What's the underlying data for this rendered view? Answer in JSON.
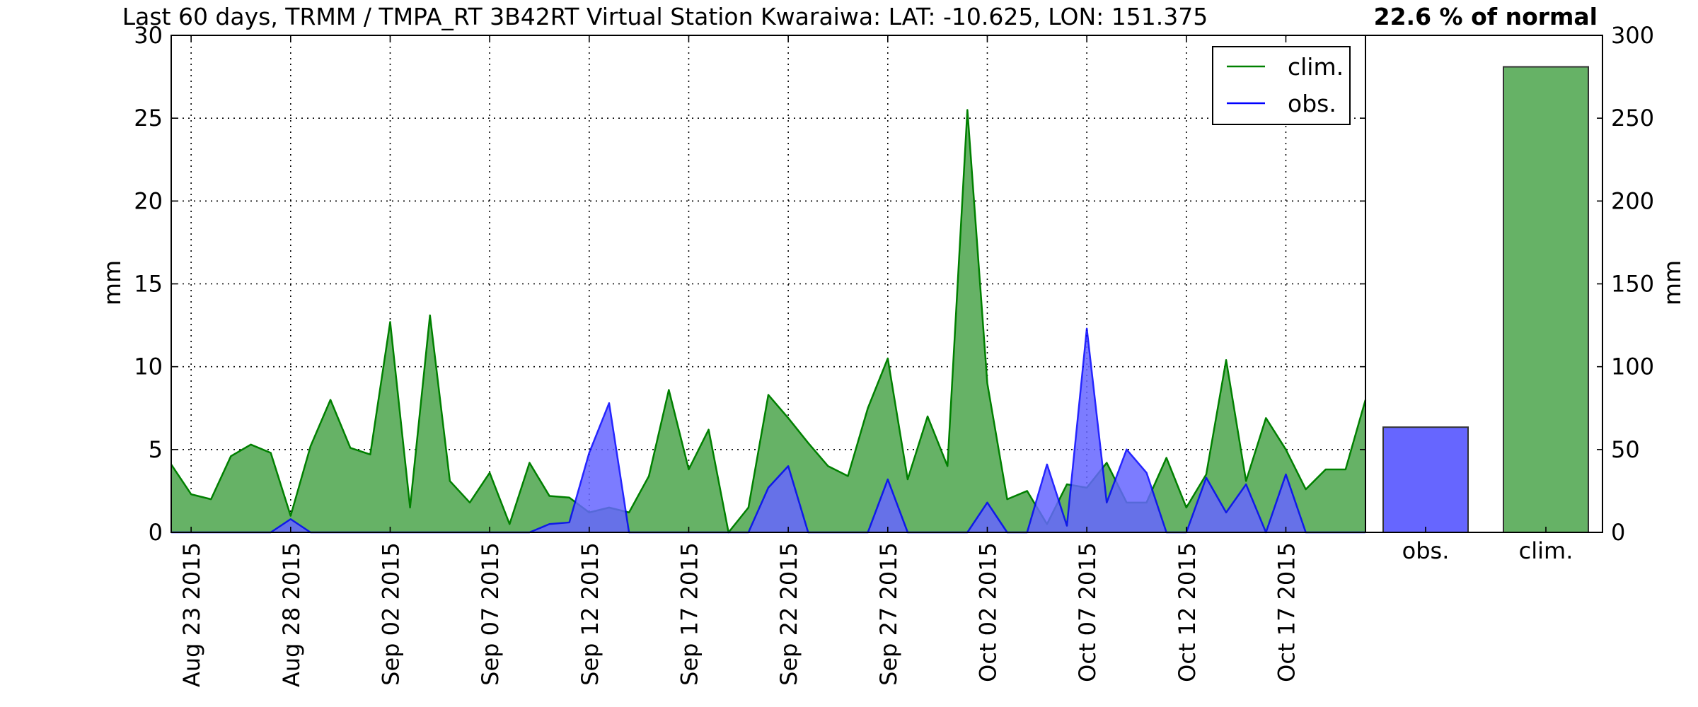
{
  "chart_data": [
    {
      "type": "area",
      "title": "Last 60 days, TRMM / TMPA_RT 3B42RT Virtual Station Kwaraiwa: LAT: -10.625, LON: 151.375",
      "ylabel": "mm",
      "xlabel": "",
      "x_start": "2015-08-22",
      "x_end": "2015-10-21",
      "xlim": [
        "2015-08-22",
        "2015-10-21"
      ],
      "ylim": [
        0,
        30
      ],
      "yticks": [
        "0",
        "5",
        "10",
        "15",
        "20",
        "25",
        "30"
      ],
      "xtick_labels": [
        "Aug 23 2015",
        "Aug 28 2015",
        "Sep 02 2015",
        "Sep 07 2015",
        "Sep 12 2015",
        "Sep 17 2015",
        "Sep 22 2015",
        "Sep 27 2015",
        "Oct 02 2015",
        "Oct 07 2015",
        "Oct 12 2015",
        "Oct 17 2015"
      ],
      "xtick_dates": [
        "2015-08-23",
        "2015-08-28",
        "2015-09-02",
        "2015-09-07",
        "2015-09-12",
        "2015-09-17",
        "2015-09-22",
        "2015-09-27",
        "2015-10-02",
        "2015-10-07",
        "2015-10-12",
        "2015-10-17"
      ],
      "grid": true,
      "legend_position": "top-right",
      "series": [
        {
          "name": "clim.",
          "color": "#008000",
          "fill": "#66b266",
          "dates": [
            "2015-08-22",
            "2015-08-23",
            "2015-08-24",
            "2015-08-25",
            "2015-08-26",
            "2015-08-27",
            "2015-08-28",
            "2015-08-29",
            "2015-08-30",
            "2015-08-31",
            "2015-09-01",
            "2015-09-02",
            "2015-09-03",
            "2015-09-04",
            "2015-09-05",
            "2015-09-06",
            "2015-09-07",
            "2015-09-08",
            "2015-09-09",
            "2015-09-10",
            "2015-09-11",
            "2015-09-12",
            "2015-09-13",
            "2015-09-14",
            "2015-09-15",
            "2015-09-16",
            "2015-09-17",
            "2015-09-18",
            "2015-09-19",
            "2015-09-20",
            "2015-09-21",
            "2015-09-22",
            "2015-09-23",
            "2015-09-24",
            "2015-09-25",
            "2015-09-26",
            "2015-09-27",
            "2015-09-28",
            "2015-09-29",
            "2015-09-30",
            "2015-10-01",
            "2015-10-02",
            "2015-10-03",
            "2015-10-04",
            "2015-10-05",
            "2015-10-06",
            "2015-10-07",
            "2015-10-08",
            "2015-10-09",
            "2015-10-10",
            "2015-10-11",
            "2015-10-12",
            "2015-10-13",
            "2015-10-14",
            "2015-10-15",
            "2015-10-16",
            "2015-10-17",
            "2015-10-18",
            "2015-10-19",
            "2015-10-20",
            "2015-10-21"
          ],
          "values": [
            4.1,
            2.3,
            2.0,
            4.6,
            5.3,
            4.8,
            1.0,
            5.2,
            8.0,
            5.1,
            4.7,
            12.7,
            1.5,
            13.1,
            3.1,
            1.8,
            3.6,
            0.5,
            4.2,
            2.2,
            2.1,
            1.2,
            1.5,
            1.2,
            3.4,
            8.6,
            3.8,
            6.2,
            0.0,
            1.5,
            8.3,
            6.9,
            5.4,
            4.0,
            3.4,
            7.5,
            10.5,
            3.2,
            7.0,
            4.0,
            25.5,
            9.0,
            2.0,
            2.5,
            0.5,
            2.9,
            2.7,
            4.2,
            1.8,
            1.8,
            4.5,
            1.5,
            3.5,
            10.4,
            3.1,
            6.9,
            5.0,
            2.6,
            3.8,
            3.8,
            8.0
          ]
        },
        {
          "name": "obs.",
          "color": "#0000ff",
          "fill": "#6666ff",
          "dates": [
            "2015-08-22",
            "2015-08-23",
            "2015-08-24",
            "2015-08-25",
            "2015-08-26",
            "2015-08-27",
            "2015-08-28",
            "2015-08-29",
            "2015-08-30",
            "2015-08-31",
            "2015-09-01",
            "2015-09-02",
            "2015-09-03",
            "2015-09-04",
            "2015-09-05",
            "2015-09-06",
            "2015-09-07",
            "2015-09-08",
            "2015-09-09",
            "2015-09-10",
            "2015-09-11",
            "2015-09-12",
            "2015-09-13",
            "2015-09-14",
            "2015-09-15",
            "2015-09-16",
            "2015-09-17",
            "2015-09-18",
            "2015-09-19",
            "2015-09-20",
            "2015-09-21",
            "2015-09-22",
            "2015-09-23",
            "2015-09-24",
            "2015-09-25",
            "2015-09-26",
            "2015-09-27",
            "2015-09-28",
            "2015-09-29",
            "2015-09-30",
            "2015-10-01",
            "2015-10-02",
            "2015-10-03",
            "2015-10-04",
            "2015-10-05",
            "2015-10-06",
            "2015-10-07",
            "2015-10-08",
            "2015-10-09",
            "2015-10-10",
            "2015-10-11",
            "2015-10-12",
            "2015-10-13",
            "2015-10-14",
            "2015-10-15",
            "2015-10-16",
            "2015-10-17",
            "2015-10-18",
            "2015-10-19",
            "2015-10-20",
            "2015-10-21"
          ],
          "values": [
            0,
            0,
            0,
            0,
            0,
            0,
            0.8,
            0,
            0,
            0,
            0,
            0,
            0,
            0,
            0,
            0,
            0,
            0,
            0,
            0.5,
            0.6,
            4.8,
            7.8,
            0,
            0,
            0,
            0,
            0,
            0,
            0,
            2.7,
            4.0,
            0,
            0,
            0,
            0,
            3.2,
            0,
            0,
            0,
            0,
            1.8,
            0,
            0,
            4.1,
            0.4,
            12.3,
            1.8,
            5.0,
            3.6,
            0,
            0,
            3.3,
            1.2,
            2.9,
            0,
            3.5,
            0,
            0,
            0,
            0
          ]
        }
      ]
    },
    {
      "type": "bar",
      "title": "22.6 % of normal",
      "ylabel": "mm",
      "ylim": [
        0,
        300
      ],
      "yticks": [
        "0",
        "50",
        "100",
        "150",
        "200",
        "250",
        "300"
      ],
      "categories": [
        "obs.",
        "clim."
      ],
      "values": [
        63.5,
        281.0
      ],
      "colors": [
        "#6666ff",
        "#66b266"
      ]
    }
  ]
}
